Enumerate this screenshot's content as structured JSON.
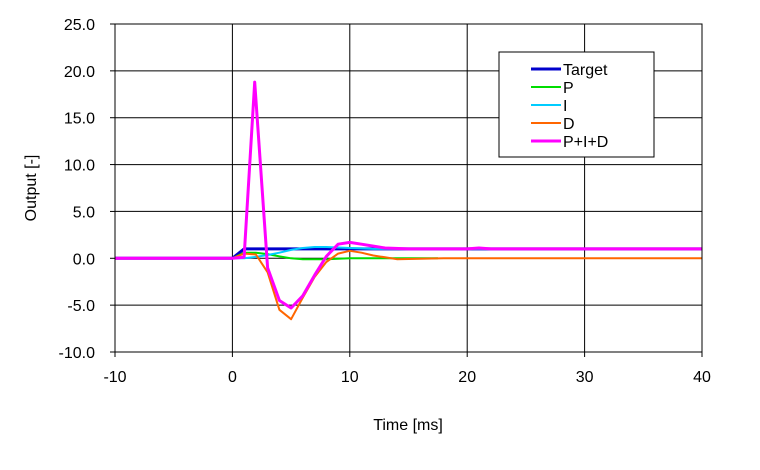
{
  "chart_data": {
    "type": "line",
    "title": "",
    "xlabel": "Time [ms]",
    "ylabel": "Output [-]",
    "xlim": [
      -10,
      40
    ],
    "ylim": [
      -10,
      25
    ],
    "x_ticks": [
      -10,
      0,
      10,
      20,
      30,
      40
    ],
    "y_ticks": [
      -10,
      -5,
      0,
      5,
      10,
      15,
      20,
      25
    ],
    "x_tick_labels": [
      "-10",
      "0",
      "10",
      "20",
      "30",
      "40"
    ],
    "y_tick_labels": [
      "-10.0",
      "-5.0",
      "0.0",
      "5.0",
      "10.0",
      "15.0",
      "20.0",
      "25.0"
    ],
    "grid": true,
    "legend_position": "top-right",
    "series": [
      {
        "name": "Target",
        "color": "#0000cc",
        "points": [
          [
            -10,
            0
          ],
          [
            0,
            0
          ],
          [
            1,
            1
          ],
          [
            40,
            1
          ]
        ]
      },
      {
        "name": "P",
        "color": "#00dd00",
        "points": [
          [
            -10,
            0
          ],
          [
            0,
            0
          ],
          [
            1,
            0.6
          ],
          [
            2,
            0.6
          ],
          [
            3,
            0.45
          ],
          [
            4,
            0.2
          ],
          [
            5,
            0
          ],
          [
            6,
            -0.1
          ],
          [
            8,
            -0.1
          ],
          [
            10,
            0
          ],
          [
            12,
            0
          ],
          [
            14,
            0
          ],
          [
            17.5,
            0
          ]
        ]
      },
      {
        "name": "I",
        "color": "#00ccff",
        "points": [
          [
            -10,
            0
          ],
          [
            0,
            0
          ],
          [
            1,
            0
          ],
          [
            2,
            0.15
          ],
          [
            3,
            0.35
          ],
          [
            4,
            0.6
          ],
          [
            5,
            0.9
          ],
          [
            6,
            1.1
          ],
          [
            7,
            1.2
          ],
          [
            8,
            1.2
          ],
          [
            9,
            1.15
          ],
          [
            10,
            1.1
          ],
          [
            11,
            1.05
          ],
          [
            12,
            1.0
          ],
          [
            14,
            1.0
          ],
          [
            16,
            1.0
          ],
          [
            20,
            1.0
          ],
          [
            40,
            1.0
          ]
        ]
      },
      {
        "name": "D",
        "color": "#ff6600",
        "points": [
          [
            -10,
            0
          ],
          [
            0,
            0
          ],
          [
            1,
            0.5
          ],
          [
            2,
            0.4
          ],
          [
            3,
            -1.5
          ],
          [
            4,
            -5.5
          ],
          [
            5,
            -6.5
          ],
          [
            6,
            -4.2
          ],
          [
            7,
            -2
          ],
          [
            8,
            -0.4
          ],
          [
            9,
            0.5
          ],
          [
            10,
            0.8
          ],
          [
            11,
            0.6
          ],
          [
            12,
            0.3
          ],
          [
            13,
            0.1
          ],
          [
            14,
            -0.1
          ],
          [
            16,
            -0.05
          ],
          [
            18,
            0
          ],
          [
            20,
            0
          ],
          [
            40,
            0
          ]
        ]
      },
      {
        "name": "P+I+D",
        "color": "#ff00ff",
        "points": [
          [
            -10,
            0
          ],
          [
            0,
            0
          ],
          [
            1,
            0.1
          ],
          [
            1.9,
            18.8
          ],
          [
            3,
            -1
          ],
          [
            4,
            -4.5
          ],
          [
            5,
            -5.3
          ],
          [
            6,
            -4
          ],
          [
            7,
            -1.8
          ],
          [
            8,
            0.2
          ],
          [
            9,
            1.5
          ],
          [
            10,
            1.7
          ],
          [
            11,
            1.5
          ],
          [
            12,
            1.3
          ],
          [
            13,
            1.1
          ],
          [
            15,
            1.0
          ],
          [
            20,
            1.0
          ],
          [
            21,
            1.1
          ],
          [
            22,
            1.0
          ],
          [
            40,
            1.0
          ]
        ]
      }
    ]
  }
}
